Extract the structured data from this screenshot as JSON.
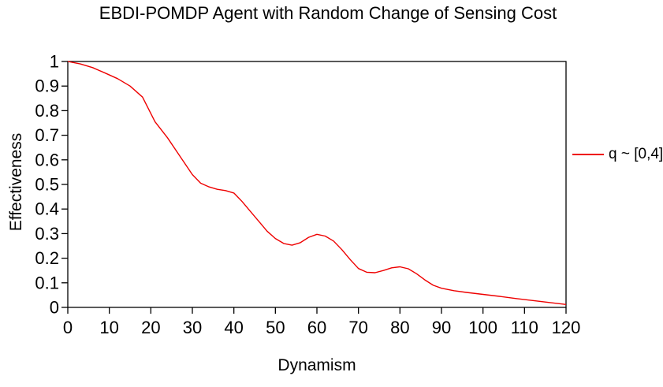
{
  "chart_data": {
    "type": "line",
    "title": "EBDI-POMDP Agent with Random Change of Sensing Cost",
    "xlabel": "Dynamism",
    "ylabel": "Effectiveness",
    "xlim": [
      0,
      120
    ],
    "ylim": [
      0,
      1
    ],
    "xticks": [
      0,
      10,
      20,
      30,
      40,
      50,
      60,
      70,
      80,
      90,
      100,
      110,
      120
    ],
    "yticks": [
      0,
      0.1,
      0.2,
      0.3,
      0.4,
      0.5,
      0.6,
      0.7,
      0.8,
      0.9,
      1
    ],
    "ytick_labels": [
      "0",
      "0.1",
      "0.2",
      "0.3",
      "0.4",
      "0.5",
      "0.6",
      "0.7",
      "0.8",
      "0.9",
      "1"
    ],
    "grid": false,
    "legend_position": "right",
    "axis_color": "#000000",
    "series": [
      {
        "name": "q ~ [0,4]",
        "color": "#ee0000",
        "x": [
          0,
          3,
          6,
          9,
          12,
          15,
          18,
          21,
          24,
          27,
          30,
          32,
          34,
          36,
          38,
          40,
          42,
          44,
          46,
          48,
          50,
          52,
          54,
          56,
          58,
          60,
          62,
          64,
          66,
          68,
          70,
          72,
          74,
          76,
          78,
          80,
          82,
          84,
          86,
          88,
          90,
          93,
          96,
          100,
          104,
          108,
          112,
          116,
          120
        ],
        "y": [
          1.0,
          0.99,
          0.975,
          0.953,
          0.93,
          0.9,
          0.855,
          0.755,
          0.69,
          0.615,
          0.54,
          0.505,
          0.49,
          0.48,
          0.475,
          0.465,
          0.43,
          0.39,
          0.35,
          0.31,
          0.28,
          0.26,
          0.253,
          0.263,
          0.285,
          0.297,
          0.29,
          0.27,
          0.235,
          0.195,
          0.158,
          0.143,
          0.141,
          0.15,
          0.161,
          0.165,
          0.157,
          0.137,
          0.112,
          0.09,
          0.078,
          0.068,
          0.061,
          0.053,
          0.045,
          0.036,
          0.028,
          0.02,
          0.012
        ]
      }
    ]
  }
}
